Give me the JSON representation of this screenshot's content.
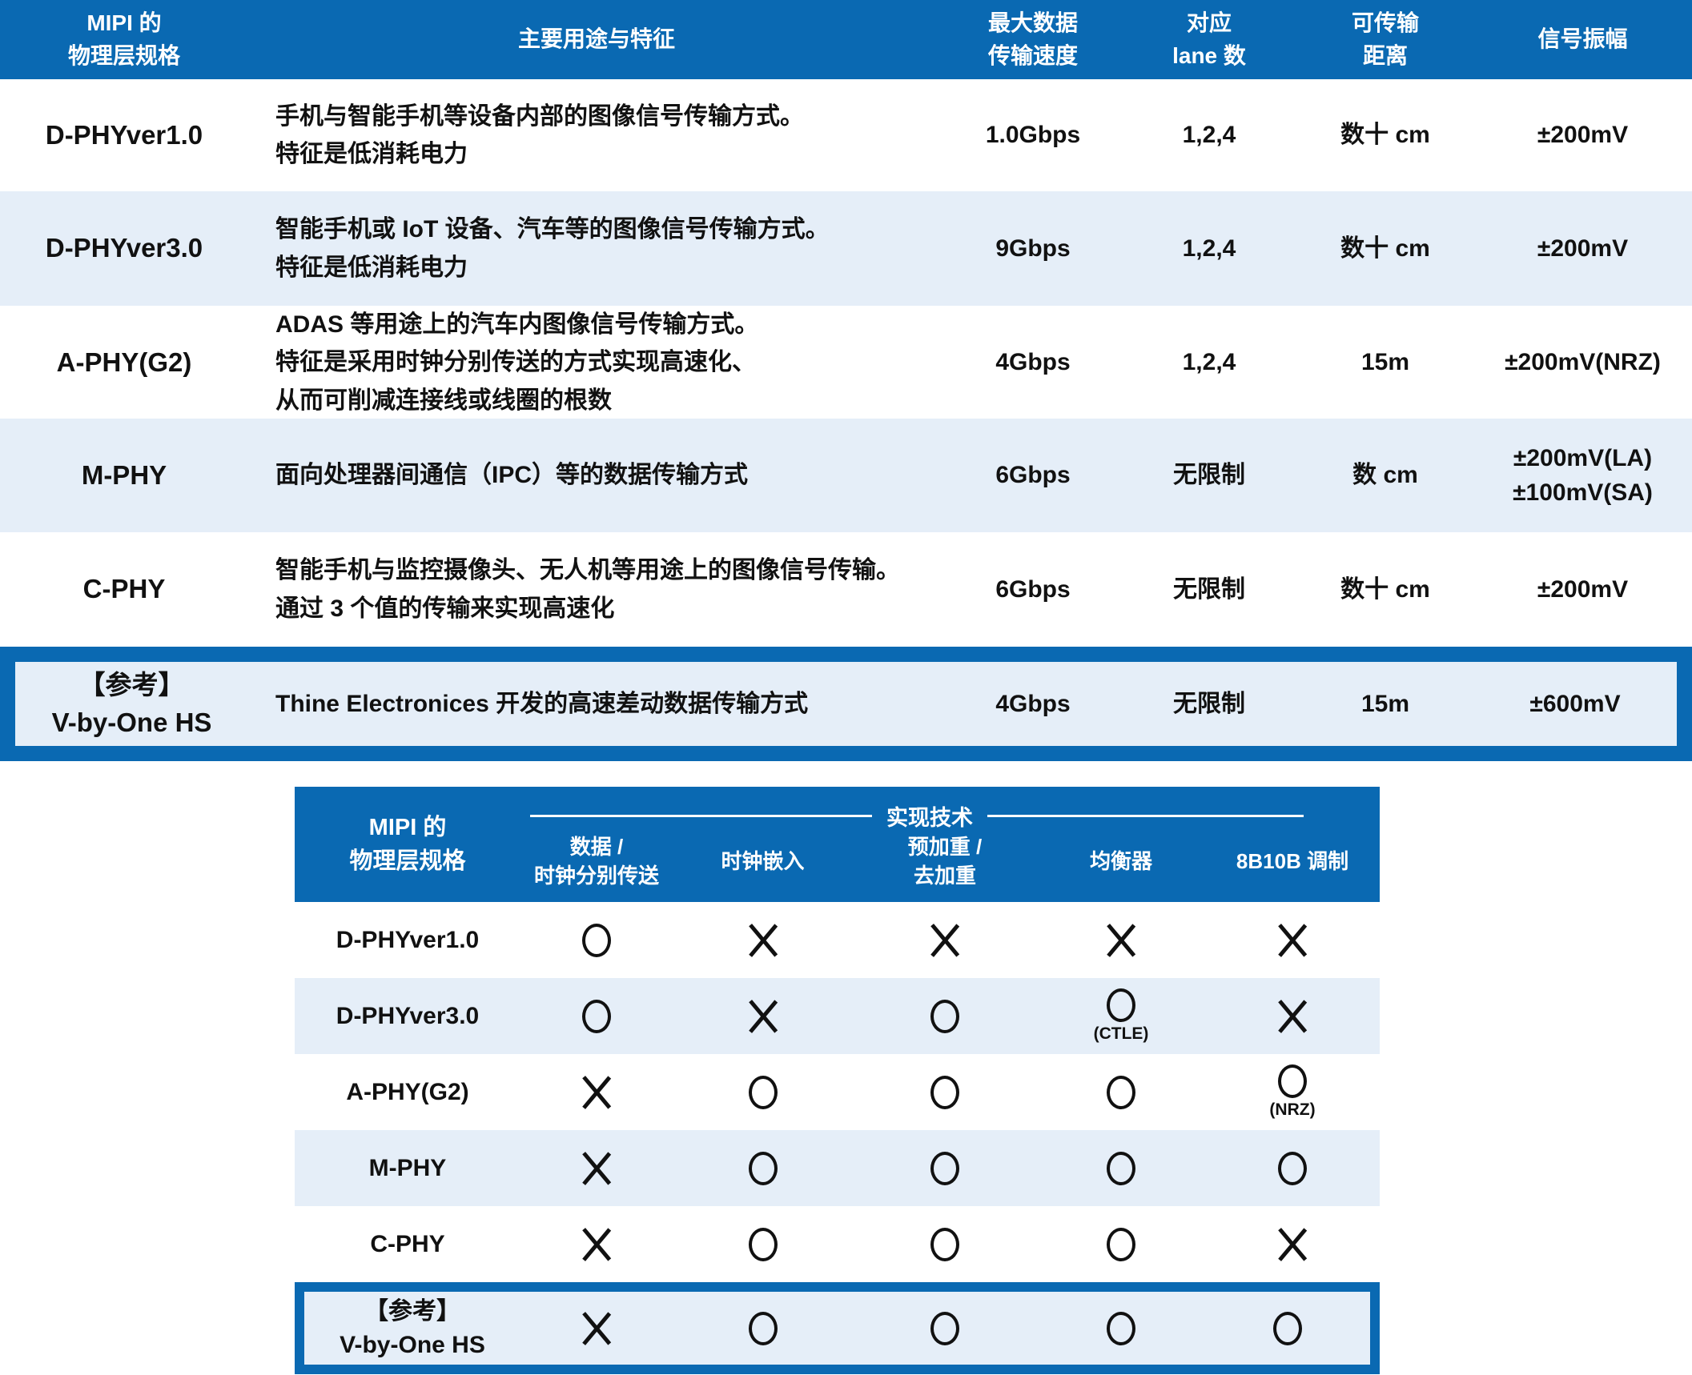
{
  "colors": {
    "header_blue": "#0a69b2",
    "row_alt_blue": "#e5eef8",
    "text": "#111111",
    "header_text": "#ffffff"
  },
  "table1": {
    "columns": [
      "MIPI 的\n物理层规格",
      "主要用途与特征",
      "最大数据\n传输速度",
      "对应\nlane 数",
      "可传输\n距离",
      "信号振幅"
    ],
    "rows": [
      {
        "spec": "D-PHYver1.0",
        "desc": "手机与智能手机等设备内部的图像信号传输方式。\n特征是低消耗电力",
        "speed": "1.0Gbps",
        "lanes": "1,2,4",
        "distance": "数十 cm",
        "amplitude": "±200mV"
      },
      {
        "spec": "D-PHYver3.0",
        "desc": "智能手机或 IoT 设备、汽车等的图像信号传输方式。\n特征是低消耗电力",
        "speed": "9Gbps",
        "lanes": "1,2,4",
        "distance": "数十 cm",
        "amplitude": "±200mV"
      },
      {
        "spec": "A-PHY(G2)",
        "desc": "ADAS 等用途上的汽车内图像信号传输方式。\n特征是采用时钟分别传送的方式实现高速化、\n从而可削减连接线或线圈的根数",
        "speed": "4Gbps",
        "lanes": "1,2,4",
        "distance": "15m",
        "amplitude": "±200mV(NRZ)"
      },
      {
        "spec": "M-PHY",
        "desc": "面向处理器间通信（IPC）等的数据传输方式",
        "speed": "6Gbps",
        "lanes": "无限制",
        "distance": "数 cm",
        "amplitude": "±200mV(LA)\n±100mV(SA)"
      },
      {
        "spec": "C-PHY",
        "desc": "智能手机与监控摄像头、无人机等用途上的图像信号传输。\n通过 3 个值的传输来实现高速化",
        "speed": "6Gbps",
        "lanes": "无限制",
        "distance": "数十 cm",
        "amplitude": "±200mV"
      },
      {
        "spec": "【参考】\nV-by-One HS",
        "desc": "Thine Electronices 开发的高速差动数据传输方式",
        "speed": "4Gbps",
        "lanes": "无限制",
        "distance": "15m",
        "amplitude": "±600mV",
        "highlight": true
      }
    ]
  },
  "table2": {
    "spec_header": "MIPI 的\n物理层规格",
    "group_header": "实现技术",
    "columns": [
      "数据 /\n时钟分别传送",
      "时钟嵌入",
      "预加重 /\n去加重",
      "均衡器",
      "8B10B 调制"
    ],
    "rows": [
      {
        "spec": "D-PHYver1.0",
        "marks": [
          {
            "type": "circle",
            "note": ""
          },
          {
            "type": "cross",
            "note": ""
          },
          {
            "type": "cross",
            "note": ""
          },
          {
            "type": "cross",
            "note": ""
          },
          {
            "type": "cross",
            "note": ""
          }
        ]
      },
      {
        "spec": "D-PHYver3.0",
        "marks": [
          {
            "type": "circle",
            "note": ""
          },
          {
            "type": "cross",
            "note": ""
          },
          {
            "type": "circle",
            "note": ""
          },
          {
            "type": "circle",
            "note": "(CTLE)"
          },
          {
            "type": "cross",
            "note": ""
          }
        ]
      },
      {
        "spec": "A-PHY(G2)",
        "marks": [
          {
            "type": "cross",
            "note": ""
          },
          {
            "type": "circle",
            "note": ""
          },
          {
            "type": "circle",
            "note": ""
          },
          {
            "type": "circle",
            "note": ""
          },
          {
            "type": "circle",
            "note": "(NRZ)"
          }
        ]
      },
      {
        "spec": "M-PHY",
        "marks": [
          {
            "type": "cross",
            "note": ""
          },
          {
            "type": "circle",
            "note": ""
          },
          {
            "type": "circle",
            "note": ""
          },
          {
            "type": "circle",
            "note": ""
          },
          {
            "type": "circle",
            "note": ""
          }
        ]
      },
      {
        "spec": "C-PHY",
        "marks": [
          {
            "type": "cross",
            "note": ""
          },
          {
            "type": "circle",
            "note": ""
          },
          {
            "type": "circle",
            "note": ""
          },
          {
            "type": "circle",
            "note": ""
          },
          {
            "type": "cross",
            "note": ""
          }
        ]
      },
      {
        "spec": "【参考】\nV-by-One HS",
        "highlight": true,
        "marks": [
          {
            "type": "cross",
            "note": ""
          },
          {
            "type": "circle",
            "note": ""
          },
          {
            "type": "circle",
            "note": ""
          },
          {
            "type": "circle",
            "note": ""
          },
          {
            "type": "circle",
            "note": ""
          }
        ]
      }
    ]
  },
  "chart_data": [
    {
      "type": "table",
      "title": "MIPI 物理层规格比较",
      "columns": [
        "MIPI 的物理层规格",
        "主要用途与特征",
        "最大数据传输速度",
        "对应 lane 数",
        "可传输距离",
        "信号振幅"
      ],
      "rows": [
        [
          "D-PHYver1.0",
          "手机与智能手机等设备内部的图像信号传输方式。特征是低消耗电力",
          "1.0Gbps",
          "1,2,4",
          "数十 cm",
          "±200mV"
        ],
        [
          "D-PHYver3.0",
          "智能手机或 IoT 设备、汽车等的图像信号传输方式。特征是低消耗电力",
          "9Gbps",
          "1,2,4",
          "数十 cm",
          "±200mV"
        ],
        [
          "A-PHY(G2)",
          "ADAS 等用途上的汽车内图像信号传输方式。特征是采用时钟分别传送的方式实现高速化、从而可削减连接线或线圈的根数",
          "4Gbps",
          "1,2,4",
          "15m",
          "±200mV(NRZ)"
        ],
        [
          "M-PHY",
          "面向处理器间通信（IPC）等的数据传输方式",
          "6Gbps",
          "无限制",
          "数 cm",
          "±200mV(LA) ±100mV(SA)"
        ],
        [
          "C-PHY",
          "智能手机与监控摄像头、无人机等用途上的图像信号传输。通过 3 个值的传输来实现高速化",
          "6Gbps",
          "无限制",
          "数十 cm",
          "±200mV"
        ],
        [
          "【参考】V-by-One HS",
          "Thine Electronices 开发的高速差动数据传输方式",
          "4Gbps",
          "无限制",
          "15m",
          "±600mV"
        ]
      ]
    },
    {
      "type": "table",
      "title": "实现技术",
      "columns": [
        "MIPI 的物理层规格",
        "数据 / 时钟分别传送",
        "时钟嵌入",
        "预加重 / 去加重",
        "均衡器",
        "8B10B 调制"
      ],
      "rows": [
        [
          "D-PHYver1.0",
          "O",
          "X",
          "X",
          "X",
          "X"
        ],
        [
          "D-PHYver3.0",
          "O",
          "X",
          "O",
          "O (CTLE)",
          "X"
        ],
        [
          "A-PHY(G2)",
          "X",
          "O",
          "O",
          "O",
          "O (NRZ)"
        ],
        [
          "M-PHY",
          "X",
          "O",
          "O",
          "O",
          "O"
        ],
        [
          "C-PHY",
          "X",
          "O",
          "O",
          "O",
          "X"
        ],
        [
          "【参考】V-by-One HS",
          "X",
          "O",
          "O",
          "O",
          "O"
        ]
      ]
    }
  ]
}
